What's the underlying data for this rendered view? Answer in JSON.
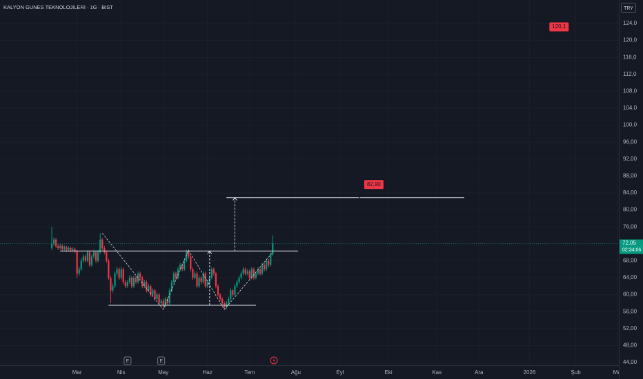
{
  "chart_data": {
    "type": "candlestick",
    "title": "KALYON GUNES TEKNOLOJILERI · 1G · BIST",
    "currency": "TRY",
    "up_color": "#089981",
    "down_color": "#f23645",
    "xlim": [
      -24.6,
      269.8
    ],
    "ylim": [
      43.35,
      129.53
    ],
    "xticks": [
      {
        "value": 12,
        "label": "Mar"
      },
      {
        "value": 33,
        "label": "Nis"
      },
      {
        "value": 53,
        "label": "May"
      },
      {
        "value": 74,
        "label": "Haz"
      },
      {
        "value": 94,
        "label": "Tem"
      },
      {
        "value": 116,
        "label": "Ağu"
      },
      {
        "value": 137,
        "label": "Eyl"
      },
      {
        "value": 160,
        "label": "Eki"
      },
      {
        "value": 183,
        "label": "Kas"
      },
      {
        "value": 203,
        "label": "Ara"
      },
      {
        "value": 227,
        "label": "2026"
      },
      {
        "value": 249,
        "label": "Şub"
      },
      {
        "value": 269,
        "label": "Mar"
      }
    ],
    "yticks": [
      {
        "value": 44,
        "label": "44,00"
      },
      {
        "value": 48,
        "label": "48,00"
      },
      {
        "value": 52,
        "label": "52,00"
      },
      {
        "value": 56,
        "label": "56,00"
      },
      {
        "value": 60,
        "label": "60,00"
      },
      {
        "value": 64,
        "label": "64,00"
      },
      {
        "value": 68,
        "label": "68,00"
      },
      {
        "value": 72,
        "label": "72,00"
      },
      {
        "value": 76,
        "label": "76,00"
      },
      {
        "value": 80,
        "label": "80,00"
      },
      {
        "value": 84,
        "label": "84,00"
      },
      {
        "value": 88,
        "label": "88,00"
      },
      {
        "value": 92,
        "label": "92,00"
      },
      {
        "value": 96,
        "label": "96,00"
      },
      {
        "value": 100,
        "label": "100,0"
      },
      {
        "value": 104,
        "label": "104,0"
      },
      {
        "value": 108,
        "label": "108,0"
      },
      {
        "value": 112,
        "label": "112,0"
      },
      {
        "value": 116,
        "label": "116,0"
      },
      {
        "value": 120,
        "label": "120,0"
      },
      {
        "value": 124,
        "label": "124,0"
      }
    ],
    "candles": [
      [
        71,
        76,
        70.5,
        72
      ],
      [
        72,
        73.5,
        71.5,
        73
      ],
      [
        73,
        73.4,
        71,
        71.5
      ],
      [
        71.5,
        72,
        70.5,
        71
      ],
      [
        71,
        72,
        70.6,
        71.5
      ],
      [
        71.5,
        71.9,
        70.3,
        70.8
      ],
      [
        70.8,
        71.6,
        70.4,
        71.2
      ],
      [
        71.2,
        71.5,
        70.1,
        70.6
      ],
      [
        70.6,
        71.4,
        70.2,
        71
      ],
      [
        71,
        71.3,
        70,
        70.5
      ],
      [
        70.5,
        71.2,
        70.1,
        70.8
      ],
      [
        70.8,
        71.1,
        69.8,
        70.2
      ],
      [
        70.2,
        70.5,
        64,
        65
      ],
      [
        65,
        66.6,
        64.5,
        66
      ],
      [
        66,
        68.6,
        65.6,
        68
      ],
      [
        68,
        69.5,
        67.5,
        69
      ],
      [
        69,
        69.4,
        67.6,
        68
      ],
      [
        68,
        70.5,
        67.6,
        70
      ],
      [
        70,
        70.4,
        66.5,
        67
      ],
      [
        67,
        69.5,
        66.6,
        69
      ],
      [
        69,
        70.6,
        68.5,
        70
      ],
      [
        70,
        70.3,
        67.5,
        68
      ],
      [
        68,
        70.5,
        67.6,
        70
      ],
      [
        70,
        74.5,
        69.6,
        73
      ],
      [
        73,
        73.4,
        70.5,
        71
      ],
      [
        71,
        71.5,
        69.5,
        70
      ],
      [
        70,
        70.4,
        67.5,
        68
      ],
      [
        68,
        68.4,
        63.5,
        64
      ],
      [
        64,
        64.4,
        58,
        61
      ],
      [
        61,
        62.6,
        60.5,
        62
      ],
      [
        62,
        65.5,
        61.6,
        65
      ],
      [
        65,
        66.6,
        64.5,
        66
      ],
      [
        66,
        66.4,
        63.5,
        64
      ],
      [
        64,
        66.5,
        63.6,
        66
      ],
      [
        66,
        66.4,
        62.5,
        63
      ],
      [
        63,
        63.5,
        61.5,
        62
      ],
      [
        62,
        63.5,
        61.6,
        63
      ],
      [
        63,
        64.6,
        62.5,
        64
      ],
      [
        64,
        64.4,
        61.5,
        62
      ],
      [
        62,
        64.5,
        61.6,
        64
      ],
      [
        64,
        64.4,
        62.5,
        63
      ],
      [
        63,
        65.5,
        62.6,
        65
      ],
      [
        65,
        65.4,
        63.5,
        64
      ],
      [
        64,
        64.4,
        61.5,
        62
      ],
      [
        62,
        63.5,
        61.6,
        63
      ],
      [
        63,
        63.4,
        60.5,
        61
      ],
      [
        61,
        62.5,
        60.6,
        62
      ],
      [
        62,
        62.4,
        59.5,
        60
      ],
      [
        60,
        61.5,
        59.6,
        61
      ],
      [
        61,
        61.4,
        58.5,
        59
      ],
      [
        59,
        60.5,
        58.6,
        60
      ],
      [
        60,
        60.4,
        57.5,
        58
      ],
      [
        58,
        59,
        57.6,
        58.5
      ],
      [
        58.5,
        59,
        56.5,
        57.5
      ],
      [
        57.5,
        59.5,
        57,
        59
      ],
      [
        59,
        59.4,
        57.5,
        58
      ],
      [
        58,
        61.5,
        57.6,
        61
      ],
      [
        61,
        63.5,
        60.6,
        63
      ],
      [
        63,
        65.5,
        62.6,
        65
      ],
      [
        65,
        65.4,
        63.5,
        64
      ],
      [
        64,
        66.5,
        63.6,
        66
      ],
      [
        66,
        67.5,
        65.6,
        67
      ],
      [
        67,
        67.4,
        65.5,
        66
      ],
      [
        66,
        68.5,
        65.6,
        68
      ],
      [
        68,
        70.6,
        67.6,
        70
      ],
      [
        70,
        70.4,
        68.5,
        69
      ],
      [
        69,
        69.4,
        65.5,
        66
      ],
      [
        66,
        66.4,
        63.5,
        64
      ],
      [
        64,
        65.5,
        63.6,
        65
      ],
      [
        65,
        65.4,
        61.5,
        62
      ],
      [
        62,
        64.5,
        61.6,
        64
      ],
      [
        64,
        64.4,
        62.5,
        63
      ],
      [
        63,
        65.5,
        62.6,
        65
      ],
      [
        65,
        65.4,
        61.5,
        62
      ],
      [
        62,
        63.5,
        61.6,
        63
      ],
      [
        63,
        64.5,
        62.6,
        64
      ],
      [
        64,
        66.5,
        63.6,
        66
      ],
      [
        66,
        66.4,
        64.5,
        65
      ],
      [
        65,
        65.4,
        61.5,
        62
      ],
      [
        62,
        62.4,
        59.5,
        60
      ],
      [
        60,
        60.4,
        58.5,
        59
      ],
      [
        59,
        59.4,
        57.5,
        58
      ],
      [
        58,
        58.4,
        56.5,
        57
      ],
      [
        57,
        58.5,
        56.6,
        58
      ],
      [
        58,
        59.5,
        57.6,
        59
      ],
      [
        59,
        61.5,
        58.6,
        61
      ],
      [
        61,
        61.4,
        59.5,
        60
      ],
      [
        60,
        62.5,
        59.6,
        62
      ],
      [
        62,
        63.5,
        61.6,
        63
      ],
      [
        63,
        64.5,
        62.6,
        64
      ],
      [
        64,
        65.5,
        63.6,
        65
      ],
      [
        65,
        66.5,
        64.6,
        66
      ],
      [
        66,
        66.4,
        64.5,
        65
      ],
      [
        65,
        66,
        64.6,
        65.5
      ],
      [
        65.5,
        65.9,
        63.5,
        64
      ],
      [
        64,
        66.5,
        63.6,
        66
      ],
      [
        66,
        66.4,
        63.5,
        64
      ],
      [
        64,
        65.5,
        63.6,
        65
      ],
      [
        65,
        66.5,
        64.6,
        66
      ],
      [
        66,
        66.4,
        64.5,
        65
      ],
      [
        65,
        67.5,
        64.6,
        67
      ],
      [
        67,
        67.4,
        65.5,
        66
      ],
      [
        66,
        68.5,
        65.6,
        68
      ],
      [
        68,
        68.4,
        66.5,
        67
      ],
      [
        67,
        70,
        66.6,
        69.5
      ],
      [
        69.5,
        74,
        69.1,
        72.05
      ]
    ],
    "last_price": {
      "value": 72.05,
      "label": "72,05"
    },
    "countdown": "02:34:06",
    "levels": [
      {
        "value": 70.3,
        "x": [
          4,
          117
        ]
      },
      {
        "value": 57.5,
        "x": [
          27,
          97
        ]
      },
      {
        "value": 82.9,
        "x": [
          83,
          196
        ]
      }
    ],
    "pattern": {
      "x": [
        24,
        53,
        65,
        82,
        105
      ],
      "y": [
        74.5,
        56.5,
        70.5,
        56.5,
        70
      ]
    },
    "measures": [
      {
        "x": 75,
        "from": 57.5,
        "to": 70.3
      },
      {
        "x": 87,
        "from": 70.3,
        "to": 82.9
      }
    ],
    "annotations": [
      {
        "x": 146,
        "value": 82.9,
        "label": "82,90"
      },
      {
        "x": 234,
        "value": 120.1,
        "label": "120,1"
      }
    ],
    "events": [
      {
        "x": 36,
        "label": "E"
      },
      {
        "x": 52,
        "label": "E"
      }
    ]
  }
}
